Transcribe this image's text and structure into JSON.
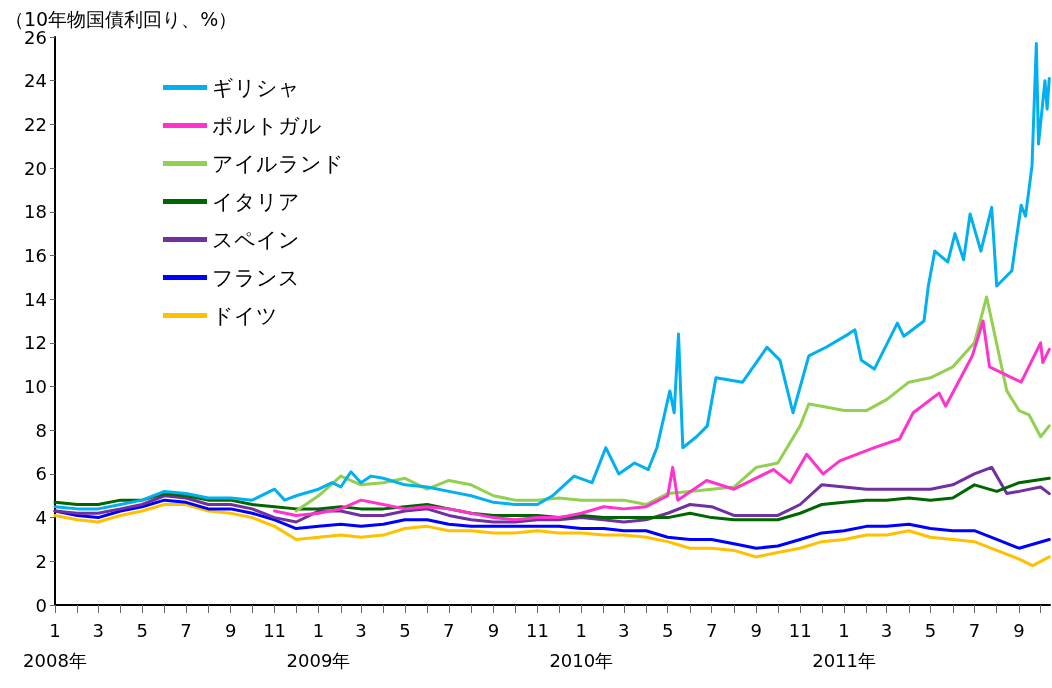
{
  "chart_data": {
    "type": "line",
    "ylabel": "（10年物国債利回り、%）",
    "legend": "top left",
    "grid": false,
    "marker": "none",
    "line_style": "solid",
    "ylim": [
      0,
      26
    ],
    "yticks": [
      0,
      2,
      4,
      6,
      8,
      10,
      12,
      14,
      16,
      18,
      20,
      22,
      24,
      26
    ],
    "xlim": [
      "2008-01-01",
      "2011-10-14"
    ],
    "xticks": [
      {
        "value": "2008-01-01",
        "label": "1\n2008年"
      },
      {
        "value": "2008-02-01",
        "label": null
      },
      {
        "value": "2008-03-01",
        "label": "3"
      },
      {
        "value": "2008-04-01",
        "label": null
      },
      {
        "value": "2008-05-01",
        "label": "5"
      },
      {
        "value": "2008-06-01",
        "label": null
      },
      {
        "value": "2008-07-01",
        "label": "7"
      },
      {
        "value": "2008-08-01",
        "label": null
      },
      {
        "value": "2008-09-01",
        "label": "9"
      },
      {
        "value": "2008-10-01",
        "label": null
      },
      {
        "value": "2008-11-01",
        "label": "11"
      },
      {
        "value": "2008-12-01",
        "label": null
      },
      {
        "value": "2009-01-01",
        "label": "1\n2009年"
      },
      {
        "value": "2009-02-01",
        "label": null
      },
      {
        "value": "2009-03-01",
        "label": "3"
      },
      {
        "value": "2009-04-01",
        "label": null
      },
      {
        "value": "2009-05-01",
        "label": "5"
      },
      {
        "value": "2009-06-01",
        "label": null
      },
      {
        "value": "2009-07-01",
        "label": "7"
      },
      {
        "value": "2009-08-01",
        "label": null
      },
      {
        "value": "2009-09-01",
        "label": "9"
      },
      {
        "value": "2009-10-01",
        "label": null
      },
      {
        "value": "2009-11-01",
        "label": "11"
      },
      {
        "value": "2009-12-01",
        "label": null
      },
      {
        "value": "2010-01-01",
        "label": "1\n2010年"
      },
      {
        "value": "2010-02-01",
        "label": null
      },
      {
        "value": "2010-03-01",
        "label": "3"
      },
      {
        "value": "2010-04-01",
        "label": null
      },
      {
        "value": "2010-05-01",
        "label": "5"
      },
      {
        "value": "2010-06-01",
        "label": null
      },
      {
        "value": "2010-07-01",
        "label": "7"
      },
      {
        "value": "2010-08-01",
        "label": null
      },
      {
        "value": "2010-09-01",
        "label": "9"
      },
      {
        "value": "2010-10-01",
        "label": null
      },
      {
        "value": "2010-11-01",
        "label": "11"
      },
      {
        "value": "2010-12-01",
        "label": null
      },
      {
        "value": "2011-01-01",
        "label": "1\n2011年"
      },
      {
        "value": "2011-02-01",
        "label": null
      },
      {
        "value": "2011-03-01",
        "label": "3"
      },
      {
        "value": "2011-04-01",
        "label": null
      },
      {
        "value": "2011-05-01",
        "label": "5"
      },
      {
        "value": "2011-06-01",
        "label": null
      },
      {
        "value": "2011-07-01",
        "label": "7"
      },
      {
        "value": "2011-08-01",
        "label": null
      },
      {
        "value": "2011-09-01",
        "label": "9"
      },
      {
        "value": "2011-10-01",
        "label": null
      }
    ],
    "series": [
      {
        "name": "ギリシャ",
        "color": "#00b0f0",
        "x": [
          "2008-01-01",
          "2008-02-01",
          "2008-03-01",
          "2008-04-01",
          "2008-05-01",
          "2008-06-01",
          "2008-07-01",
          "2008-08-01",
          "2008-09-01",
          "2008-10-01",
          "2008-11-01",
          "2008-11-15",
          "2008-12-01",
          "2009-01-01",
          "2009-01-20",
          "2009-02-01",
          "2009-02-15",
          "2009-03-01",
          "2009-03-15",
          "2009-04-01",
          "2009-05-01",
          "2009-06-01",
          "2009-07-01",
          "2009-08-01",
          "2009-09-01",
          "2009-10-01",
          "2009-11-01",
          "2009-11-22",
          "2009-12-22",
          "2010-01-16",
          "2010-02-04",
          "2010-02-22",
          "2010-03-16",
          "2010-04-04",
          "2010-04-16",
          "2010-05-04",
          "2010-05-10",
          "2010-05-16",
          "2010-05-22",
          "2010-06-10",
          "2010-06-25",
          "2010-07-07",
          "2010-08-13",
          "2010-09-16",
          "2010-10-04",
          "2010-10-22",
          "2010-11-13",
          "2010-12-07",
          "2011-01-07",
          "2011-01-16",
          "2011-01-25",
          "2011-02-12",
          "2011-03-16",
          "2011-03-25",
          "2011-04-22",
          "2011-04-28",
          "2011-05-07",
          "2011-05-25",
          "2011-06-04",
          "2011-06-16",
          "2011-06-25",
          "2011-07-10",
          "2011-07-25",
          "2011-08-01",
          "2011-08-22",
          "2011-08-28",
          "2011-09-04",
          "2011-09-10",
          "2011-09-19",
          "2011-09-25",
          "2011-09-28",
          "2011-10-07",
          "2011-10-10",
          "2011-10-13"
        ],
        "values": [
          4.5,
          4.4,
          4.4,
          4.6,
          4.8,
          5.2,
          5.1,
          4.9,
          4.9,
          4.8,
          5.3,
          4.8,
          5.0,
          5.3,
          5.6,
          5.4,
          6.1,
          5.6,
          5.9,
          5.8,
          5.5,
          5.4,
          5.2,
          5.0,
          4.7,
          4.6,
          4.6,
          5.0,
          5.9,
          5.6,
          7.2,
          6.0,
          6.5,
          6.2,
          7.2,
          9.8,
          8.8,
          12.4,
          7.2,
          7.7,
          8.2,
          10.4,
          10.2,
          11.8,
          11.2,
          8.8,
          11.4,
          11.8,
          12.4,
          12.6,
          11.2,
          10.8,
          12.9,
          12.3,
          13.0,
          14.6,
          16.2,
          15.7,
          17.0,
          15.8,
          17.9,
          16.2,
          18.2,
          14.6,
          15.3,
          16.7,
          18.3,
          17.8,
          20.1,
          25.7,
          21.1,
          24.0,
          22.7,
          24.1
        ]
      },
      {
        "name": "ポルトガル",
        "color": "#ff33cc",
        "x": [
          "2008-11-01",
          "2008-12-01",
          "2009-01-01",
          "2009-02-01",
          "2009-03-01",
          "2009-04-01",
          "2009-05-01",
          "2009-06-01",
          "2009-07-01",
          "2009-08-01",
          "2009-09-01",
          "2009-10-01",
          "2009-11-01",
          "2009-12-01",
          "2010-01-01",
          "2010-02-01",
          "2010-03-01",
          "2010-04-01",
          "2010-05-01",
          "2010-05-08",
          "2010-05-15",
          "2010-06-24",
          "2010-08-01",
          "2010-09-25",
          "2010-10-18",
          "2010-11-10",
          "2010-12-03",
          "2010-12-26",
          "2011-02-12",
          "2011-03-19",
          "2011-04-07",
          "2011-05-13",
          "2011-05-22",
          "2011-06-28",
          "2011-07-13",
          "2011-07-22",
          "2011-08-16",
          "2011-09-04",
          "2011-10-01",
          "2011-10-04",
          "2011-10-13"
        ],
        "values": [
          4.3,
          4.1,
          4.2,
          4.4,
          4.8,
          4.6,
          4.4,
          4.5,
          4.4,
          4.2,
          4.0,
          3.9,
          4.0,
          4.0,
          4.2,
          4.5,
          4.4,
          4.5,
          5.0,
          6.3,
          4.8,
          5.7,
          5.3,
          6.2,
          5.6,
          6.9,
          6.0,
          6.6,
          7.2,
          7.6,
          8.8,
          9.7,
          9.1,
          11.4,
          13.0,
          10.9,
          10.5,
          10.2,
          12.0,
          11.1,
          11.7
        ]
      },
      {
        "name": "アイルランド",
        "color": "#92d050",
        "x": [
          "2008-12-01",
          "2009-01-01",
          "2009-02-01",
          "2009-03-01",
          "2009-04-01",
          "2009-05-01",
          "2009-06-01",
          "2009-07-01",
          "2009-08-01",
          "2009-09-01",
          "2009-10-01",
          "2009-11-01",
          "2009-12-01",
          "2010-01-01",
          "2010-02-01",
          "2010-03-01",
          "2010-04-01",
          "2010-05-01",
          "2010-06-01",
          "2010-07-01",
          "2010-08-01",
          "2010-09-01",
          "2010-10-01",
          "2010-11-01",
          "2010-11-13",
          "2010-12-01",
          "2011-01-01",
          "2011-02-01",
          "2011-03-01",
          "2011-04-01",
          "2011-05-01",
          "2011-06-01",
          "2011-07-01",
          "2011-07-18",
          "2011-08-15",
          "2011-09-01",
          "2011-09-15",
          "2011-10-01",
          "2011-10-13"
        ],
        "values": [
          4.3,
          5.0,
          5.9,
          5.5,
          5.6,
          5.8,
          5.3,
          5.7,
          5.5,
          5.0,
          4.8,
          4.8,
          4.9,
          4.8,
          4.8,
          4.8,
          4.6,
          5.1,
          5.2,
          5.3,
          5.4,
          6.3,
          6.5,
          8.2,
          9.2,
          9.1,
          8.9,
          8.9,
          9.4,
          10.2,
          10.4,
          10.9,
          12.0,
          14.1,
          9.8,
          8.9,
          8.7,
          7.7,
          8.2
        ]
      },
      {
        "name": "イタリア",
        "color": "#006600",
        "x": [
          "2008-01-01",
          "2008-02-01",
          "2008-03-01",
          "2008-04-01",
          "2008-05-01",
          "2008-06-01",
          "2008-07-01",
          "2008-08-01",
          "2008-09-01",
          "2008-10-01",
          "2008-11-01",
          "2008-12-01",
          "2009-01-01",
          "2009-02-01",
          "2009-03-01",
          "2009-04-01",
          "2009-05-01",
          "2009-06-01",
          "2009-07-01",
          "2009-08-01",
          "2009-09-01",
          "2009-10-01",
          "2009-11-01",
          "2009-12-01",
          "2010-01-01",
          "2010-02-01",
          "2010-03-01",
          "2010-04-01",
          "2010-05-01",
          "2010-06-01",
          "2010-07-01",
          "2010-08-01",
          "2010-09-01",
          "2010-10-01",
          "2010-11-01",
          "2010-12-01",
          "2011-01-01",
          "2011-02-01",
          "2011-03-01",
          "2011-04-01",
          "2011-05-01",
          "2011-06-01",
          "2011-07-01",
          "2011-08-01",
          "2011-09-01",
          "2011-10-13"
        ],
        "values": [
          4.7,
          4.6,
          4.6,
          4.8,
          4.8,
          5.1,
          5.0,
          4.8,
          4.8,
          4.6,
          4.5,
          4.4,
          4.4,
          4.5,
          4.4,
          4.4,
          4.5,
          4.6,
          4.4,
          4.2,
          4.1,
          4.1,
          4.1,
          4.0,
          4.1,
          4.0,
          4.0,
          4.0,
          4.0,
          4.2,
          4.0,
          3.9,
          3.9,
          3.9,
          4.2,
          4.6,
          4.7,
          4.8,
          4.8,
          4.9,
          4.8,
          4.9,
          5.5,
          5.2,
          5.6,
          5.8
        ]
      },
      {
        "name": "スペイン",
        "color": "#7030a0",
        "x": [
          "2008-01-01",
          "2008-02-01",
          "2008-03-01",
          "2008-04-01",
          "2008-05-01",
          "2008-06-01",
          "2008-07-01",
          "2008-08-01",
          "2008-09-01",
          "2008-10-01",
          "2008-11-01",
          "2008-12-01",
          "2009-01-01",
          "2009-02-01",
          "2009-03-01",
          "2009-04-01",
          "2009-05-01",
          "2009-06-01",
          "2009-07-01",
          "2009-08-01",
          "2009-09-01",
          "2009-10-01",
          "2009-11-01",
          "2009-12-01",
          "2010-01-01",
          "2010-02-01",
          "2010-03-01",
          "2010-04-01",
          "2010-05-01",
          "2010-06-01",
          "2010-07-01",
          "2010-08-01",
          "2010-09-01",
          "2010-10-01",
          "2010-11-01",
          "2010-12-01",
          "2011-01-01",
          "2011-02-01",
          "2011-03-01",
          "2011-04-01",
          "2011-05-01",
          "2011-06-01",
          "2011-07-01",
          "2011-07-25",
          "2011-08-15",
          "2011-09-01",
          "2011-10-01",
          "2011-10-13"
        ],
        "values": [
          4.3,
          4.2,
          4.2,
          4.4,
          4.6,
          5.0,
          4.9,
          4.6,
          4.6,
          4.4,
          4.0,
          3.8,
          4.3,
          4.3,
          4.1,
          4.1,
          4.3,
          4.4,
          4.1,
          3.9,
          3.8,
          3.8,
          3.9,
          3.9,
          4.0,
          3.9,
          3.8,
          3.9,
          4.2,
          4.6,
          4.5,
          4.1,
          4.1,
          4.1,
          4.6,
          5.5,
          5.4,
          5.3,
          5.3,
          5.3,
          5.3,
          5.5,
          6.0,
          6.3,
          5.1,
          5.2,
          5.4,
          5.1
        ]
      },
      {
        "name": "フランス",
        "color": "#0000ff",
        "x": [
          "2008-01-01",
          "2008-02-01",
          "2008-03-01",
          "2008-04-01",
          "2008-05-01",
          "2008-06-01",
          "2008-07-01",
          "2008-08-01",
          "2008-09-01",
          "2008-10-01",
          "2008-11-01",
          "2008-12-01",
          "2009-01-01",
          "2009-02-01",
          "2009-03-01",
          "2009-04-01",
          "2009-05-01",
          "2009-06-01",
          "2009-07-01",
          "2009-08-01",
          "2009-09-01",
          "2009-10-01",
          "2009-11-01",
          "2009-12-01",
          "2010-01-01",
          "2010-02-01",
          "2010-03-01",
          "2010-04-01",
          "2010-05-01",
          "2010-06-01",
          "2010-07-01",
          "2010-08-01",
          "2010-09-01",
          "2010-10-01",
          "2010-11-01",
          "2010-12-01",
          "2011-01-01",
          "2011-02-01",
          "2011-03-01",
          "2011-04-01",
          "2011-05-01",
          "2011-06-01",
          "2011-07-01",
          "2011-08-01",
          "2011-09-01",
          "2011-10-13"
        ],
        "values": [
          4.3,
          4.1,
          4.0,
          4.3,
          4.5,
          4.8,
          4.7,
          4.4,
          4.4,
          4.2,
          3.9,
          3.5,
          3.6,
          3.7,
          3.6,
          3.7,
          3.9,
          3.9,
          3.7,
          3.6,
          3.6,
          3.6,
          3.6,
          3.6,
          3.5,
          3.5,
          3.4,
          3.4,
          3.1,
          3.0,
          3.0,
          2.8,
          2.6,
          2.7,
          3.0,
          3.3,
          3.4,
          3.6,
          3.6,
          3.7,
          3.5,
          3.4,
          3.4,
          3.0,
          2.6,
          3.0
        ]
      },
      {
        "name": "ドイツ",
        "color": "#ffc000",
        "x": [
          "2008-01-01",
          "2008-02-01",
          "2008-03-01",
          "2008-04-01",
          "2008-05-01",
          "2008-06-01",
          "2008-07-01",
          "2008-08-01",
          "2008-09-01",
          "2008-10-01",
          "2008-11-01",
          "2008-12-01",
          "2009-01-01",
          "2009-02-01",
          "2009-03-01",
          "2009-04-01",
          "2009-05-01",
          "2009-06-01",
          "2009-07-01",
          "2009-08-01",
          "2009-09-01",
          "2009-10-01",
          "2009-11-01",
          "2009-12-01",
          "2010-01-01",
          "2010-02-01",
          "2010-03-01",
          "2010-04-01",
          "2010-05-01",
          "2010-06-01",
          "2010-07-01",
          "2010-08-01",
          "2010-09-01",
          "2010-10-01",
          "2010-11-01",
          "2010-12-01",
          "2011-01-01",
          "2011-02-01",
          "2011-03-01",
          "2011-04-01",
          "2011-05-01",
          "2011-06-01",
          "2011-07-01",
          "2011-08-01",
          "2011-09-01",
          "2011-09-20",
          "2011-10-13"
        ],
        "values": [
          4.1,
          3.9,
          3.8,
          4.1,
          4.3,
          4.6,
          4.6,
          4.3,
          4.2,
          4.0,
          3.6,
          3.0,
          3.1,
          3.2,
          3.1,
          3.2,
          3.5,
          3.6,
          3.4,
          3.4,
          3.3,
          3.3,
          3.4,
          3.3,
          3.3,
          3.2,
          3.2,
          3.1,
          2.9,
          2.6,
          2.6,
          2.5,
          2.2,
          2.4,
          2.6,
          2.9,
          3.0,
          3.2,
          3.2,
          3.4,
          3.1,
          3.0,
          2.9,
          2.5,
          2.1,
          1.8,
          2.2
        ]
      }
    ]
  }
}
